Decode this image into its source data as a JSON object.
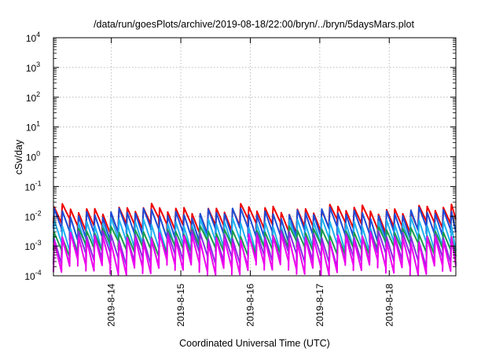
{
  "chart_data": {
    "type": "line",
    "title": "/data/run/goesPlots/archive/2019-08-18/22:00/bryn/../bryn/5daysMars.plot",
    "xlabel": "Coordinated Universal Time (UTC)",
    "ylabel": "cSv/day",
    "yscale": "log",
    "ylim": [
      0.0001,
      10000
    ],
    "y_ticks": [
      {
        "base": "10",
        "exp": "-4",
        "value": 0.0001
      },
      {
        "base": "10",
        "exp": "-3",
        "value": 0.001
      },
      {
        "base": "10",
        "exp": "-2",
        "value": 0.01
      },
      {
        "base": "10",
        "exp": "-1",
        "value": 0.1
      },
      {
        "base": "10",
        "exp": "0",
        "value": 1
      },
      {
        "base": "10",
        "exp": "1",
        "value": 10
      },
      {
        "base": "10",
        "exp": "2",
        "value": 100
      },
      {
        "base": "10",
        "exp": "3",
        "value": 1000
      },
      {
        "base": "10",
        "exp": "4",
        "value": 10000
      }
    ],
    "xlim": [
      "2019-08-13 04:00",
      "2019-08-18 23:00"
    ],
    "x_ticks": [
      "2019-8-14",
      "2019-8-15",
      "2019-8-16",
      "2019-8-17",
      "2019-8-18"
    ],
    "grid": true,
    "legend": false,
    "sawtooth_period_hours": 2.8,
    "series": [
      {
        "color": "#ee0000",
        "peak": 0.017,
        "trough": 0.0045
      },
      {
        "color": "#1c4bd6",
        "peak": 0.013,
        "trough": 0.0025
      },
      {
        "color": "#1fb0f0",
        "peak": 0.006,
        "trough": 0.001
      },
      {
        "color": "#1a9a4e",
        "peak": 0.003,
        "trough": 0.0008
      },
      {
        "color": "#8a2be2",
        "peak": 0.0022,
        "trough": 0.00035
      },
      {
        "color": "#ee00ee",
        "peak": 0.0018,
        "trough": 0.00018
      }
    ]
  }
}
